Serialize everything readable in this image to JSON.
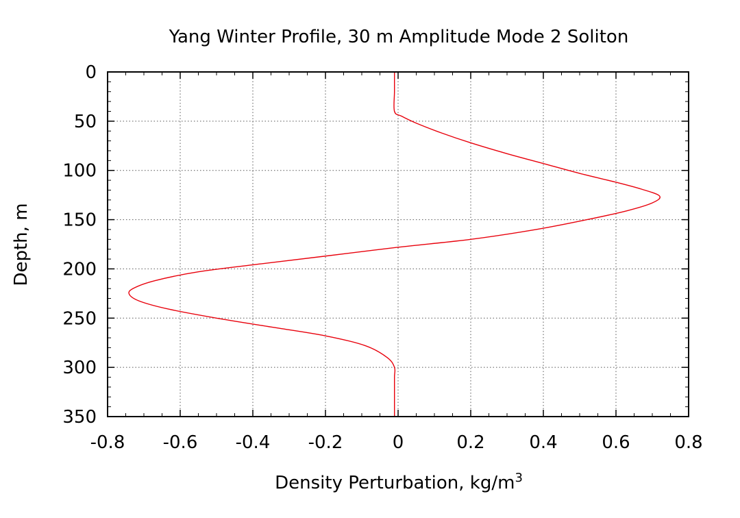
{
  "chart_data": {
    "type": "line",
    "title": "Yang Winter Profile, 30 m Amplitude Mode 2 Soliton",
    "xlabel": "Density Perturbation, kg/m",
    "xlabel_superscript": "3",
    "ylabel": "Depth, m",
    "xlim": [
      -0.8,
      0.8
    ],
    "ylim": [
      0,
      350
    ],
    "y_inverted": true,
    "x_ticks": [
      "-0.8",
      "-0.6",
      "-0.4",
      "-0.2",
      "0",
      "0.2",
      "0.4",
      "0.6",
      "0.8"
    ],
    "x_tick_values": [
      -0.8,
      -0.6,
      -0.4,
      -0.2,
      0,
      0.2,
      0.4,
      0.6,
      0.8
    ],
    "y_ticks": [
      "0",
      "50",
      "100",
      "150",
      "200",
      "250",
      "300",
      "350"
    ],
    "y_tick_values": [
      0,
      50,
      100,
      150,
      200,
      250,
      300,
      350
    ],
    "grid": true,
    "legend": false,
    "series": [
      {
        "color": "#e8000b",
        "points": [
          [
            -0.01,
            0
          ],
          [
            -0.01,
            20
          ],
          [
            -0.01,
            40
          ],
          [
            0.01,
            45
          ],
          [
            0.05,
            52
          ],
          [
            0.12,
            62
          ],
          [
            0.2,
            72
          ],
          [
            0.3,
            83
          ],
          [
            0.4,
            93
          ],
          [
            0.5,
            103
          ],
          [
            0.6,
            112
          ],
          [
            0.67,
            119
          ],
          [
            0.72,
            126
          ],
          [
            0.7,
            133
          ],
          [
            0.63,
            141
          ],
          [
            0.52,
            150
          ],
          [
            0.38,
            160
          ],
          [
            0.2,
            170
          ],
          [
            0.0,
            178
          ],
          [
            -0.2,
            187
          ],
          [
            -0.38,
            195
          ],
          [
            -0.55,
            203
          ],
          [
            -0.67,
            212
          ],
          [
            -0.73,
            220
          ],
          [
            -0.74,
            226
          ],
          [
            -0.71,
            233
          ],
          [
            -0.63,
            241
          ],
          [
            -0.5,
            250
          ],
          [
            -0.35,
            259
          ],
          [
            -0.2,
            268
          ],
          [
            -0.09,
            278
          ],
          [
            -0.03,
            290
          ],
          [
            -0.01,
            300
          ],
          [
            -0.01,
            310
          ],
          [
            -0.01,
            330
          ],
          [
            -0.01,
            350
          ]
        ]
      }
    ]
  }
}
